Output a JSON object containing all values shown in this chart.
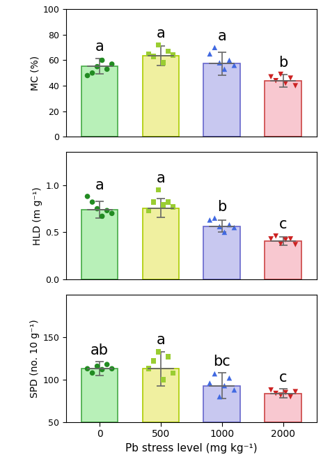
{
  "categories": [
    0,
    500,
    1000,
    2000
  ],
  "cat_labels": [
    "0",
    "500",
    "1000",
    "2000"
  ],
  "bar_colors": [
    "#b8f0b8",
    "#f0f0a0",
    "#c8c8f0",
    "#f8c8d0"
  ],
  "edge_colors": [
    "#44aa44",
    "#aacc00",
    "#6666cc",
    "#cc4444"
  ],
  "dot_colors": [
    "#228B22",
    "#9ACD32",
    "#4169E1",
    "#CC2222"
  ],
  "MC": {
    "means": [
      55.5,
      63.5,
      57.5,
      44.0
    ],
    "errors": [
      6.0,
      7.5,
      9.0,
      5.0
    ],
    "letters": [
      "a",
      "a",
      "a",
      "b"
    ],
    "ylim": [
      0,
      100
    ],
    "yticks": [
      0,
      20,
      40,
      60,
      80,
      100
    ],
    "ylabel": "MC (%)",
    "dots": [
      [
        48,
        50,
        55,
        60,
        53,
        57
      ],
      [
        65,
        63,
        72,
        58,
        67,
        64
      ],
      [
        65,
        70,
        58,
        53,
        60,
        56
      ],
      [
        47,
        44,
        49,
        42,
        46,
        40
      ]
    ]
  },
  "HLD": {
    "means": [
      0.74,
      0.755,
      0.565,
      0.41
    ],
    "errors": [
      0.09,
      0.1,
      0.065,
      0.045
    ],
    "letters": [
      "a",
      "a",
      "b",
      "c"
    ],
    "ylim": [
      0.0,
      1.35
    ],
    "yticks": [
      0.0,
      0.5,
      1.0
    ],
    "ylabel": "HLD (m g⁻¹)",
    "dots": [
      [
        0.88,
        0.82,
        0.75,
        0.67,
        0.73,
        0.7
      ],
      [
        0.73,
        0.82,
        0.95,
        0.79,
        0.82,
        0.77
      ],
      [
        0.63,
        0.65,
        0.56,
        0.5,
        0.58,
        0.55
      ],
      [
        0.43,
        0.46,
        0.38,
        0.42,
        0.43,
        0.37
      ]
    ]
  },
  "SPD": {
    "means": [
      113.0,
      113.0,
      93.0,
      84.0
    ],
    "errors": [
      8.0,
      20.0,
      15.0,
      5.0
    ],
    "letters": [
      "ab",
      "a",
      "bc",
      "c"
    ],
    "ylim": [
      50,
      200
    ],
    "yticks": [
      50,
      100,
      150
    ],
    "ylabel": "SPD (no. 10 g⁻¹)",
    "dots": [
      [
        113,
        108,
        116,
        112,
        118,
        113
      ],
      [
        113,
        122,
        133,
        100,
        127,
        108
      ],
      [
        96,
        107,
        80,
        93,
        102,
        88
      ],
      [
        88,
        84,
        82,
        85,
        80,
        86
      ]
    ]
  },
  "xlabel": "Pb stress level (mg kg⁻¹)",
  "marker_styles": [
    "o",
    "s",
    "^",
    "v"
  ]
}
